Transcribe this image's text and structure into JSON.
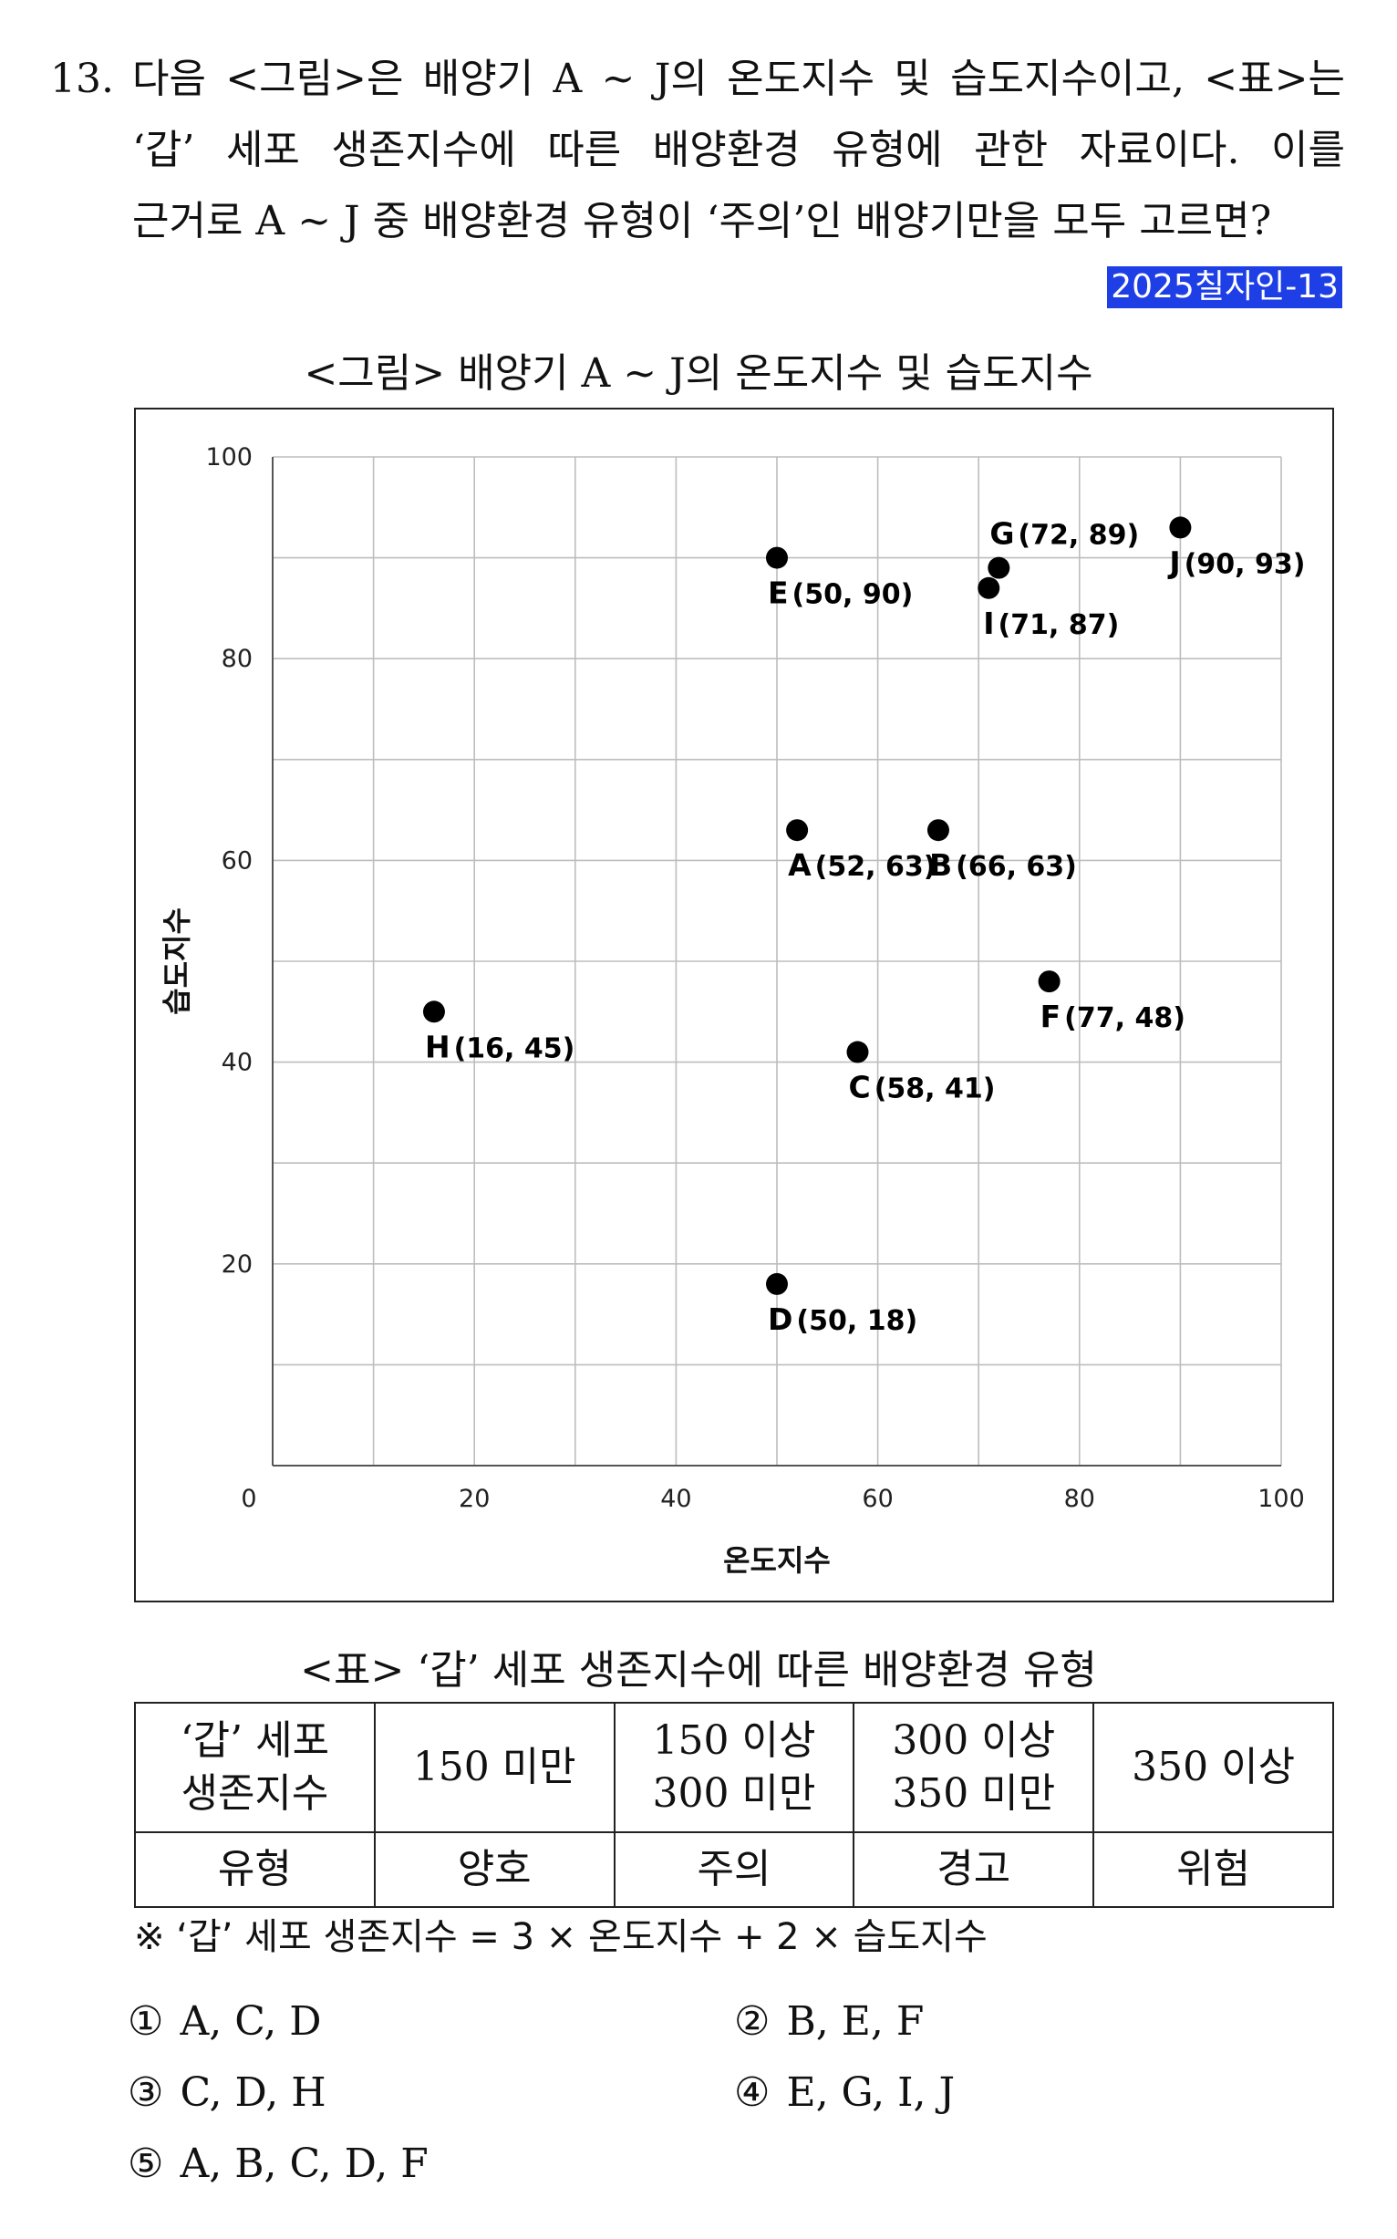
{
  "question": {
    "number": "13.",
    "lines": [
      "다음 <그림>은 배양기 A ~ J의 온도지수 및 습도지수이고, <표>는",
      "‘갑’ 세포 생존지수에 따른 배양환경 유형에 관한 자료이다. 이를",
      "근거로 A ~ J 중 배양환경 유형이 ‘주의’인 배양기만을 모두 고르면?"
    ],
    "source_tag": "2025칠자인-13"
  },
  "figure": {
    "title": "<그림> 배양기 A ~ J의 온도지수 및 습도지수"
  },
  "chart_data": {
    "type": "scatter",
    "title": "<그림> 배양기 A ~ J의 온도지수 및 습도지수",
    "xlabel": "온도지수",
    "ylabel": "습도지수",
    "xlim": [
      0,
      100
    ],
    "ylim": [
      0,
      100
    ],
    "x_ticks": [
      "0",
      "20",
      "40",
      "60",
      "80",
      "100"
    ],
    "y_ticks": [
      "20",
      "40",
      "60",
      "80",
      "100"
    ],
    "grid": true,
    "grid_step": 10,
    "marker_color": "#000000",
    "points": [
      {
        "label": "A",
        "coord_text": "(52, 63)",
        "x": 52,
        "y": 63
      },
      {
        "label": "B",
        "coord_text": "(66, 63)",
        "x": 66,
        "y": 63
      },
      {
        "label": "C",
        "coord_text": "(58, 41)",
        "x": 58,
        "y": 41
      },
      {
        "label": "D",
        "coord_text": "(50, 18)",
        "x": 50,
        "y": 18
      },
      {
        "label": "E",
        "coord_text": "(50, 90)",
        "x": 50,
        "y": 90
      },
      {
        "label": "F",
        "coord_text": "(77, 48)",
        "x": 77,
        "y": 48
      },
      {
        "label": "G",
        "coord_text": "(72, 89)",
        "x": 72,
        "y": 89
      },
      {
        "label": "H",
        "coord_text": "(16, 45)",
        "x": 16,
        "y": 45
      },
      {
        "label": "I",
        "coord_text": "(71, 87)",
        "x": 71,
        "y": 87
      },
      {
        "label": "J",
        "coord_text": "(90, 93)",
        "x": 90,
        "y": 93
      }
    ]
  },
  "table": {
    "title": "<표> ‘갑’ 세포 생존지수에 따른 배양환경 유형",
    "row1_header_line1": "‘갑’ 세포",
    "row1_header_line2": "생존지수",
    "ranges": [
      {
        "line1": "150 미만",
        "line2": ""
      },
      {
        "line1": "150 이상",
        "line2": "300 미만"
      },
      {
        "line1": "300 이상",
        "line2": "350 미만"
      },
      {
        "line1": "350 이상",
        "line2": ""
      }
    ],
    "row2_header": "유형",
    "types": [
      "양호",
      "주의",
      "경고",
      "위험"
    ],
    "note": "※ ‘갑’ 세포 생존지수 = 3 × 온도지수 + 2 × 습도지수"
  },
  "options": [
    {
      "num": "①",
      "text": "A,  C,  D"
    },
    {
      "num": "②",
      "text": "B,  E,  F"
    },
    {
      "num": "③",
      "text": "C,  D,  H"
    },
    {
      "num": "④",
      "text": "E,  G,  I,  J"
    },
    {
      "num": "⑤",
      "text": "A,  B,  C,  D,  F"
    }
  ]
}
